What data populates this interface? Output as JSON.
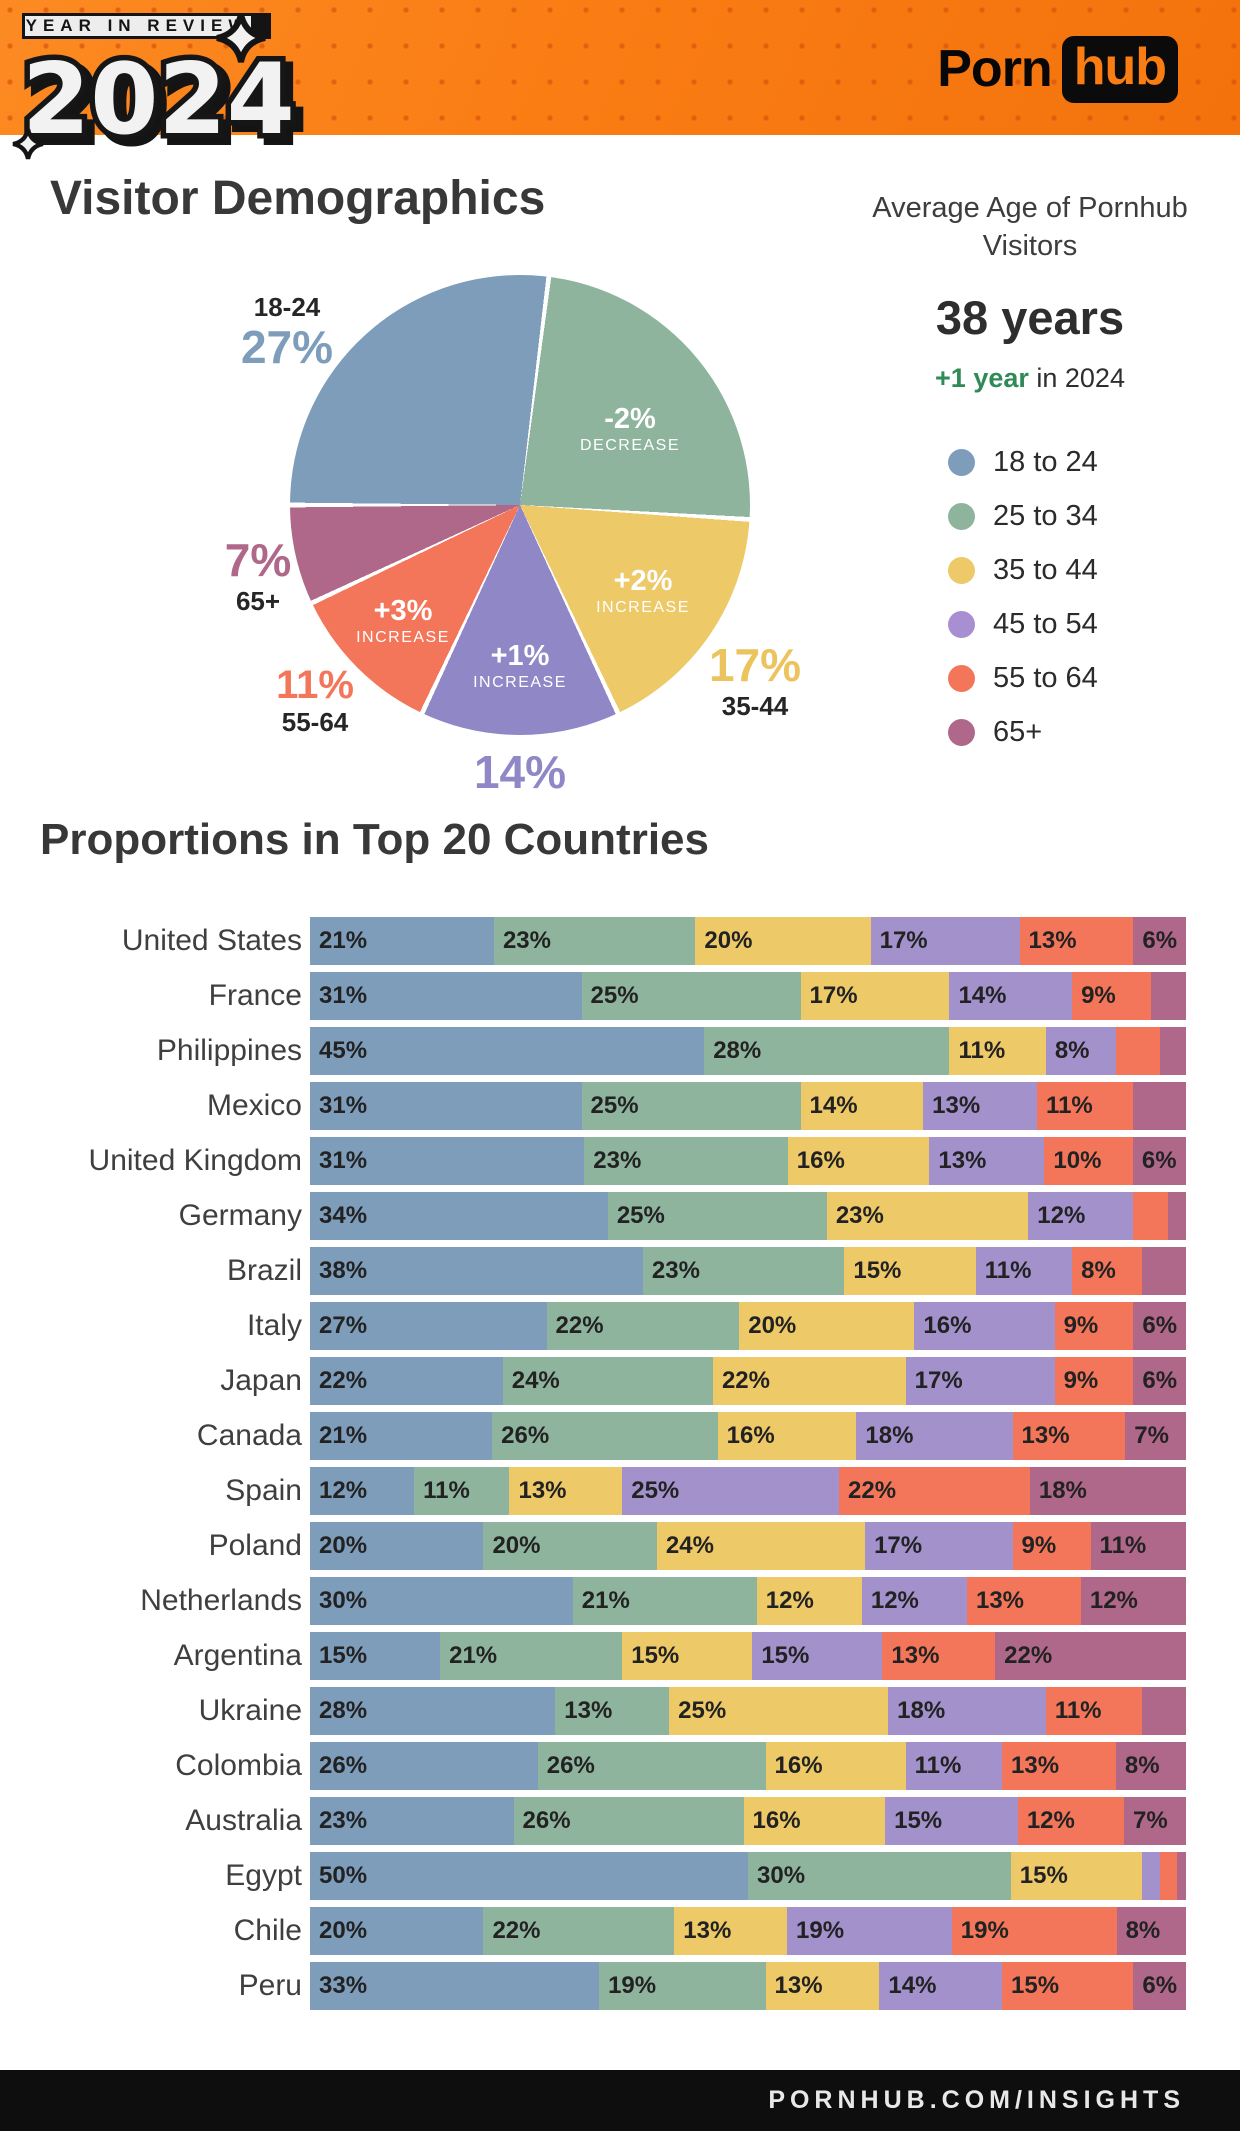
{
  "header": {
    "badge": "YEAR IN REVIEW",
    "year": "2024",
    "brand": {
      "porn": "Porn",
      "hub": "hub"
    }
  },
  "theme": {
    "orange": "#fa7d14",
    "dot_orange": "#d8500a",
    "ink": "#383838",
    "footer_bg": "#0e0e0e",
    "green_change": "#2f8a57",
    "age_colors": {
      "18-24": "#7d9dbb",
      "25-34": "#8fb49e",
      "35-44": "#edc967",
      "45-54": "#9c8ccb",
      "55-64": "#f3765a",
      "65+": "#b0688a"
    }
  },
  "demographics": {
    "title": "Visitor Demographics",
    "average": {
      "heading": "Average Age of Pornhub Visitors",
      "value": "38 years",
      "change": "+1 year",
      "change_suffix": " in 2024"
    },
    "legend": [
      {
        "label": "18 to 24",
        "color": "#7d9dbb"
      },
      {
        "label": "25 to 34",
        "color": "#8fb49e"
      },
      {
        "label": "35 to 44",
        "color": "#edc967"
      },
      {
        "label": "45 to 54",
        "color": "#a78fd2"
      },
      {
        "label": "55 to 64",
        "color": "#f3765a"
      },
      {
        "label": "65+",
        "color": "#b0688a"
      }
    ]
  },
  "chart_data": [
    {
      "type": "pie",
      "title": "Visitor Demographics",
      "unit": "%",
      "categories": [
        "18-24",
        "25-34",
        "35-44",
        "45-54",
        "55-64",
        "65+"
      ],
      "values": [
        27,
        24,
        17,
        14,
        11,
        7
      ],
      "colors": [
        "#7d9dbb",
        "#8fb49e",
        "#edc967",
        "#9088c6",
        "#f3765a",
        "#b0688a"
      ],
      "start_angle_deg": 7.2,
      "clockwise_order_from_top": [
        "25-34",
        "35-44",
        "45-54",
        "55-64",
        "65+",
        "18-24"
      ],
      "callouts": {
        "c1824": {
          "range": "18-24",
          "pct": "27%"
        },
        "c2534": {
          "change": "-2%",
          "word": "DECREASE"
        },
        "c3544": {
          "change": "+2%",
          "word": "INCREASE",
          "pct": "17%",
          "range": "35-44"
        },
        "c4554": {
          "change": "+1%",
          "word": "INCREASE",
          "pct": "14%"
        },
        "c5564": {
          "change": "+3%",
          "word": "INCREASE",
          "pct": "11%",
          "range": "55-64"
        },
        "c65plus": {
          "pct": "7%",
          "range": "65+"
        }
      }
    },
    {
      "type": "bar",
      "stacked": true,
      "orientation": "horizontal",
      "title": "Proportions in Top 20 Countries",
      "unit": "%",
      "series_names": [
        "18 to 24",
        "25 to 34",
        "35 to 44",
        "45 to 54",
        "55 to 64",
        "65+"
      ],
      "colors": [
        "#7d9dbb",
        "#8fb49e",
        "#edc967",
        "#a391cc",
        "#f3765a",
        "#b0688a"
      ],
      "xlim": [
        0,
        100
      ],
      "rows": [
        {
          "country": "United States",
          "values": [
            21,
            23,
            20,
            17,
            13,
            6
          ],
          "labels": [
            "21%",
            "23%",
            "20%",
            "17%",
            "13%",
            "6%"
          ]
        },
        {
          "country": "France",
          "values": [
            31,
            25,
            17,
            14,
            9,
            4
          ],
          "labels": [
            "31%",
            "25%",
            "17%",
            "14%",
            "9%",
            ""
          ]
        },
        {
          "country": "Philippines",
          "values": [
            45,
            28,
            11,
            8,
            5,
            3
          ],
          "labels": [
            "45%",
            "28%",
            "11%",
            "8%",
            "",
            ""
          ]
        },
        {
          "country": "Mexico",
          "values": [
            31,
            25,
            14,
            13,
            11,
            6
          ],
          "labels": [
            "31%",
            "25%",
            "14%",
            "13%",
            "11%",
            ""
          ]
        },
        {
          "country": "United Kingdom",
          "values": [
            31,
            23,
            16,
            13,
            10,
            6
          ],
          "labels": [
            "31%",
            "23%",
            "16%",
            "13%",
            "10%",
            "6%"
          ]
        },
        {
          "country": "Germany",
          "values": [
            34,
            25,
            23,
            12,
            4,
            2
          ],
          "labels": [
            "34%",
            "25%",
            "23%",
            "12%",
            "",
            ""
          ]
        },
        {
          "country": "Brazil",
          "values": [
            38,
            23,
            15,
            11,
            8,
            5
          ],
          "labels": [
            "38%",
            "23%",
            "15%",
            "11%",
            "8%",
            ""
          ]
        },
        {
          "country": "Italy",
          "values": [
            27,
            22,
            20,
            16,
            9,
            6
          ],
          "labels": [
            "27%",
            "22%",
            "20%",
            "16%",
            "9%",
            "6%"
          ]
        },
        {
          "country": "Japan",
          "values": [
            22,
            24,
            22,
            17,
            9,
            6
          ],
          "labels": [
            "22%",
            "24%",
            "22%",
            "17%",
            "9%",
            "6%"
          ]
        },
        {
          "country": "Canada",
          "values": [
            21,
            26,
            16,
            18,
            13,
            7
          ],
          "labels": [
            "21%",
            "26%",
            "16%",
            "18%",
            "13%",
            "7%"
          ]
        },
        {
          "country": "Spain",
          "values": [
            12,
            11,
            13,
            25,
            22,
            18
          ],
          "labels": [
            "12%",
            "11%",
            "13%",
            "25%",
            "22%",
            "18%"
          ]
        },
        {
          "country": "Poland",
          "values": [
            20,
            20,
            24,
            17,
            9,
            11
          ],
          "labels": [
            "20%",
            "20%",
            "24%",
            "17%",
            "9%",
            "11%"
          ]
        },
        {
          "country": "Netherlands",
          "values": [
            30,
            21,
            12,
            12,
            13,
            12
          ],
          "labels": [
            "30%",
            "21%",
            "12%",
            "12%",
            "13%",
            "12%"
          ]
        },
        {
          "country": "Argentina",
          "values": [
            15,
            21,
            15,
            15,
            13,
            22
          ],
          "labels": [
            "15%",
            "21%",
            "15%",
            "15%",
            "13%",
            "22%"
          ]
        },
        {
          "country": "Ukraine",
          "values": [
            28,
            13,
            25,
            18,
            11,
            5
          ],
          "labels": [
            "28%",
            "13%",
            "25%",
            "18%",
            "11%",
            ""
          ]
        },
        {
          "country": "Colombia",
          "values": [
            26,
            26,
            16,
            11,
            13,
            8
          ],
          "labels": [
            "26%",
            "26%",
            "16%",
            "11%",
            "13%",
            "8%"
          ]
        },
        {
          "country": "Australia",
          "values": [
            23,
            26,
            16,
            15,
            12,
            7
          ],
          "labels": [
            "23%",
            "26%",
            "16%",
            "15%",
            "12%",
            "7%"
          ]
        },
        {
          "country": "Egypt",
          "values": [
            50,
            30,
            15,
            2,
            2,
            1
          ],
          "labels": [
            "50%",
            "30%",
            "15%",
            "",
            "",
            ""
          ]
        },
        {
          "country": "Chile",
          "values": [
            20,
            22,
            13,
            19,
            19,
            8
          ],
          "labels": [
            "20%",
            "22%",
            "13%",
            "19%",
            "19%",
            "8%"
          ]
        },
        {
          "country": "Peru",
          "values": [
            33,
            19,
            13,
            14,
            15,
            6
          ],
          "labels": [
            "33%",
            "19%",
            "13%",
            "14%",
            "15%",
            "6%"
          ]
        }
      ]
    }
  ],
  "footer": {
    "text": "PORNHUB.COM/INSIGHTS"
  }
}
